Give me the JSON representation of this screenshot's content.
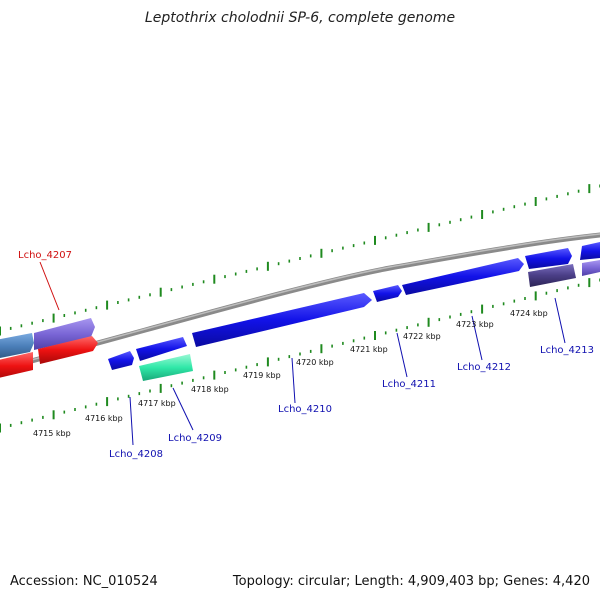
{
  "title": "Leptothrix cholodnii SP-6, complete genome",
  "footer": {
    "accession": "Accession: NC_010524",
    "topology": "Topology: circular; Length: 4,909,403 bp; Genes: 4,420"
  },
  "ticks": [
    "4715 kbp",
    "4716 kbp",
    "4717 kbp",
    "4718 kbp",
    "4719 kbp",
    "4720 kbp",
    "4721 kbp",
    "4722 kbp",
    "4723 kbp",
    "4724 kbp"
  ],
  "gene_labels": [
    "Lcho_4207",
    "Lcho_4208",
    "Lcho_4209",
    "Lcho_4210",
    "Lcho_4211",
    "Lcho_4212",
    "Lcho_4213"
  ],
  "colors": {
    "backbone": "#8a8a8a",
    "gc_ticks": "#1f8a1f",
    "blue_cds": "#1010e6",
    "red_gene": "#e81010",
    "violet_gene": "#7a66d6",
    "steel_gene": "#4a7eb8",
    "green_gene": "#30e8a8",
    "dark_violet_gene": "#4a3e86",
    "label_blue": "#1010b0",
    "label_red": "#d01010"
  }
}
